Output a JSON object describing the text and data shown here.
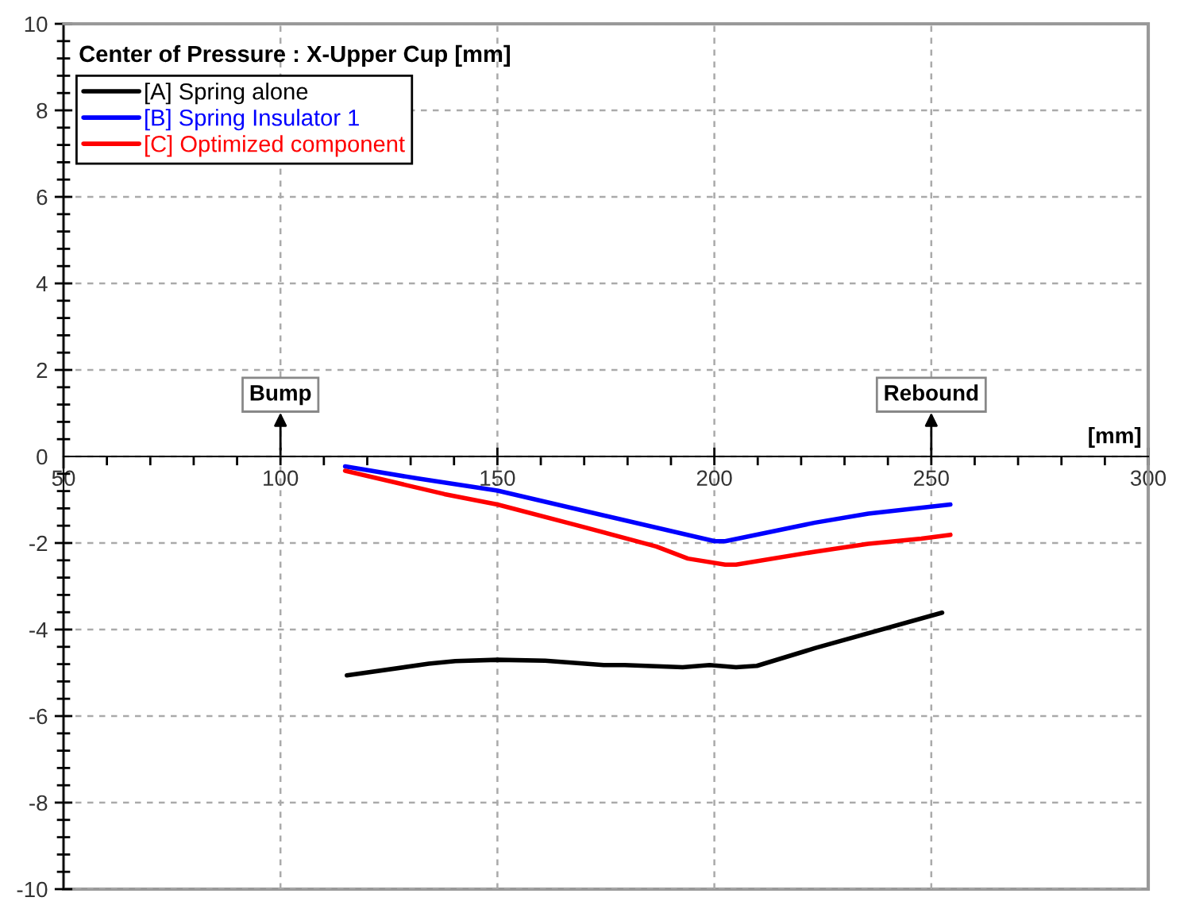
{
  "chart_data": {
    "type": "line",
    "title": "Center of Pressure : X-Upper Cup [mm]",
    "xlabel": "[mm]",
    "xlim": [
      50,
      300
    ],
    "xticks": [
      50,
      100,
      150,
      200,
      250,
      300
    ],
    "ylim": [
      -10,
      10
    ],
    "yticks": [
      -10,
      -8,
      -6,
      -4,
      -2,
      0,
      2,
      4,
      6,
      8,
      10
    ],
    "grid": true,
    "legend": "top left",
    "line_style": "solid",
    "annotations": [
      "Bump",
      "Rebound"
    ],
    "series": [
      {
        "name": "[A] Spring alone",
        "color": "#000000",
        "x": [
          115.3,
          134.2,
          140.3,
          150,
          161,
          174.5,
          179.3,
          192.7,
          198.9,
          205,
          209.8,
          223.2,
          252.5
        ],
        "values": [
          -5.06,
          -4.79,
          -4.73,
          -4.7,
          -4.72,
          -4.82,
          -4.82,
          -4.87,
          -4.82,
          -4.87,
          -4.84,
          -4.43,
          -3.61
        ]
      },
      {
        "name": "[B] Spring Insulator 1",
        "color": "#0000ff",
        "x": [
          114.9,
          131.7,
          150,
          200.1,
          202.5,
          223.2,
          235.5,
          254.4
        ],
        "values": [
          -0.23,
          -0.51,
          -0.79,
          -1.96,
          -1.96,
          -1.53,
          -1.32,
          -1.11
        ]
      },
      {
        "name": "[C] Optimized component",
        "color": "#ff0000",
        "x": [
          114.9,
          137.8,
          150,
          168.3,
          186.6,
          193.9,
          202.5,
          205,
          223.2,
          235.5,
          247.7,
          254.4
        ],
        "values": [
          -0.33,
          -0.87,
          -1.11,
          -1.59,
          -2.08,
          -2.36,
          -2.5,
          -2.5,
          -2.2,
          -2.02,
          -1.9,
          -1.81
        ]
      }
    ]
  }
}
